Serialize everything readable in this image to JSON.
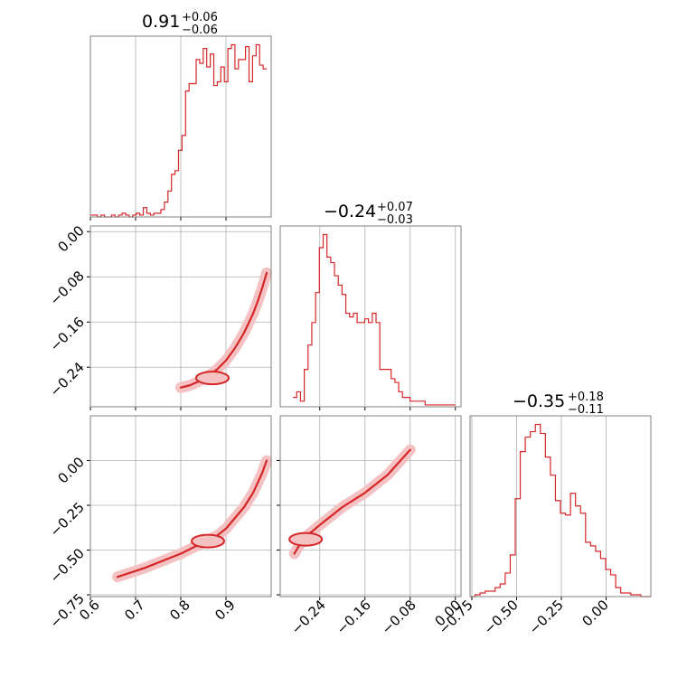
{
  "colors": {
    "series": "#d62728",
    "fill": "#f4c2c3",
    "grid": "#b0b0b0",
    "frame": "#808080"
  },
  "params": [
    {
      "median": "0.91",
      "plus": "+0.06",
      "minus": "−0.06"
    },
    {
      "median": "−0.24",
      "plus": "+0.07",
      "minus": "−0.03"
    },
    {
      "median": "−0.35",
      "plus": "+0.18",
      "minus": "−0.11"
    }
  ],
  "axis_ticks": {
    "p1_x": [
      "0.6",
      "0.7",
      "0.8",
      "0.9"
    ],
    "p2": [
      "0.00",
      "−0.08",
      "−0.16",
      "−0.24"
    ],
    "p3": [
      "−0.75",
      "−0.50",
      "−0.25",
      "0.00"
    ]
  },
  "chart_data": {
    "type": "corner",
    "grid": true,
    "ranges": {
      "p1": [
        0.6,
        1.0
      ],
      "p2": [
        -0.31,
        0.01
      ],
      "p3": [
        -0.76,
        0.25
      ]
    },
    "hist_p1": {
      "edges": [
        0.6,
        0.99
      ],
      "counts": [
        1,
        1,
        0,
        1,
        0,
        0,
        1,
        0,
        1,
        2,
        1,
        0,
        1,
        2,
        1,
        5,
        2,
        1,
        2,
        2,
        4,
        8,
        14,
        23,
        25,
        36,
        44,
        68,
        72,
        72,
        85,
        83,
        91,
        81,
        88,
        71,
        73,
        81,
        73,
        91,
        93,
        80,
        85,
        85,
        92,
        73,
        87,
        93,
        82,
        80
      ]
    },
    "hist_p2": {
      "edges": [
        -0.2875,
        0.0
      ],
      "counts": [
        5,
        8,
        3,
        20,
        33,
        45,
        61,
        85,
        92,
        80,
        77,
        70,
        65,
        60,
        50,
        48,
        50,
        45,
        45,
        47,
        45,
        50,
        45,
        20,
        20,
        20,
        15,
        13,
        8,
        5,
        5,
        3,
        3,
        3,
        3,
        1,
        1,
        1,
        1,
        1,
        1,
        1,
        1
      ]
    },
    "hist_p3": {
      "edges": [
        -0.76,
        0.25
      ],
      "counts": [
        0,
        1,
        2,
        3,
        3,
        5,
        7,
        13,
        23,
        54,
        80,
        88,
        91,
        95,
        90,
        77,
        67,
        53,
        46,
        45,
        57,
        50,
        46,
        30,
        28,
        25,
        21,
        15,
        12,
        5,
        2,
        2,
        1,
        1,
        0,
        0
      ]
    },
    "scatter_p1_p2": {
      "curve": [
        [
          0.8,
          -0.276
        ],
        [
          0.82,
          -0.272
        ],
        [
          0.84,
          -0.265
        ],
        [
          0.86,
          -0.256
        ],
        [
          0.88,
          -0.244
        ],
        [
          0.9,
          -0.228
        ],
        [
          0.92,
          -0.206
        ],
        [
          0.94,
          -0.179
        ],
        [
          0.96,
          -0.145
        ],
        [
          0.97,
          -0.124
        ],
        [
          0.98,
          -0.1
        ],
        [
          0.99,
          -0.073
        ]
      ],
      "density_peak": [
        0.87,
        -0.259
      ]
    },
    "scatter_p1_p3": {
      "curve": [
        [
          0.66,
          -0.65
        ],
        [
          0.72,
          -0.6
        ],
        [
          0.8,
          -0.52
        ],
        [
          0.84,
          -0.47
        ],
        [
          0.88,
          -0.42
        ],
        [
          0.9,
          -0.38
        ],
        [
          0.92,
          -0.32
        ],
        [
          0.94,
          -0.26
        ],
        [
          0.96,
          -0.18
        ],
        [
          0.98,
          -0.07
        ],
        [
          0.99,
          0.0
        ]
      ],
      "density_peak": [
        0.86,
        -0.45
      ]
    },
    "scatter_p2_p3": {
      "curve": [
        [
          -0.285,
          -0.52
        ],
        [
          -0.27,
          -0.44
        ],
        [
          -0.24,
          -0.36
        ],
        [
          -0.2,
          -0.26
        ],
        [
          -0.16,
          -0.18
        ],
        [
          -0.12,
          -0.08
        ],
        [
          -0.08,
          0.06
        ]
      ],
      "density_peak": [
        -0.265,
        -0.44
      ]
    }
  }
}
